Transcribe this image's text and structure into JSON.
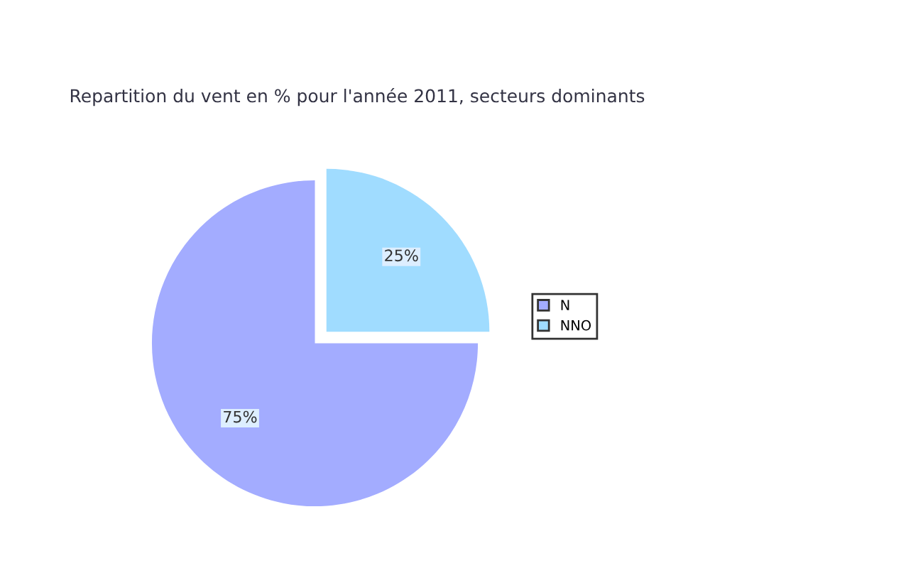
{
  "chart_data": {
    "type": "pie",
    "title": "Repartition du vent en % pour l'année 2011, secteurs dominants",
    "categories": [
      "N",
      "NNO"
    ],
    "values": [
      75,
      25
    ],
    "colors": [
      "#a3acff",
      "#a0dcff"
    ],
    "value_labels": [
      "75%",
      "25%"
    ],
    "legend": "right"
  }
}
